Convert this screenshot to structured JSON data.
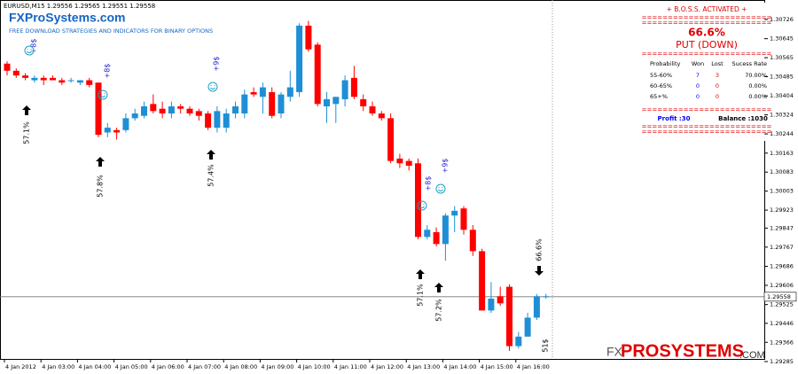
{
  "chart_data": {
    "type": "candlestick",
    "title": "EURUSD,M15  1.29556 1.29565 1.29551 1.29558",
    "categories": [
      "4 Jan 2012",
      null,
      null,
      null,
      "4 Jan 03:00",
      null,
      null,
      null,
      "4 Jan 04:00",
      null,
      null,
      null,
      "4 Jan 05:00",
      null,
      null,
      null,
      "4 Jan 06:00",
      null,
      null,
      null,
      "4 Jan 07:00",
      null,
      null,
      null,
      "4 Jan 08:00",
      null,
      null,
      null,
      "4 Jan 09:00",
      null,
      null,
      null,
      "4 Jan 10:00",
      null,
      null,
      null,
      "4 Jan 11:00",
      null,
      null,
      null,
      "4 Jan 12:00",
      null,
      null,
      null,
      "4 Jan 13:00",
      null,
      null,
      null,
      "4 Jan 14:00",
      null,
      null,
      null,
      "4 Jan 15:00",
      null,
      null,
      null,
      "4 Jan 16:00",
      null,
      null,
      null
    ],
    "open": [
      1.3054,
      1.3051,
      1.3049,
      1.3047,
      1.3048,
      1.3048,
      1.3047,
      1.3047,
      1.3046,
      1.3047,
      1.3046,
      1.3025,
      1.3026,
      1.3026,
      1.3031,
      1.3032,
      1.3037,
      1.3035,
      1.3033,
      1.3036,
      1.3035,
      1.3034,
      1.3033,
      1.3027,
      1.3027,
      1.3033,
      1.3033,
      1.3042,
      1.304,
      1.3042,
      1.3033,
      1.304,
      1.3042,
      1.307,
      1.3062,
      1.3036,
      1.3037,
      1.3039,
      1.3048,
      1.3039,
      1.3036,
      1.3033,
      1.3031,
      1.3014,
      1.3013,
      1.3012,
      1.2981,
      1.2983,
      1.2978,
      1.299,
      1.2993,
      1.2984,
      1.2975,
      1.295,
      1.2956,
      1.296,
      1.2935,
      1.2939,
      1.2947,
      1.2956
    ],
    "high": [
      1.3055,
      1.3052,
      1.305,
      1.3049,
      1.3049,
      1.3049,
      1.3048,
      1.3048,
      1.3047,
      1.3048,
      1.3046,
      1.3029,
      1.3027,
      1.3033,
      1.3035,
      1.3038,
      1.3041,
      1.3038,
      1.3038,
      1.3037,
      1.3036,
      1.3035,
      1.3034,
      1.3036,
      1.3035,
      1.3038,
      1.3043,
      1.3044,
      1.3046,
      1.3044,
      1.3042,
      1.3051,
      1.3071,
      1.3072,
      1.3063,
      1.3042,
      1.304,
      1.3049,
      1.3053,
      1.3041,
      1.3038,
      1.3034,
      1.3033,
      1.3016,
      1.3014,
      1.3014,
      1.2986,
      1.2985,
      1.2991,
      1.2994,
      1.2994,
      1.2986,
      1.2976,
      1.2962,
      1.296,
      1.2961,
      1.2941,
      1.2949,
      1.2957,
      1.2957
    ],
    "low": [
      1.3049,
      1.3048,
      1.3047,
      1.3046,
      1.3045,
      1.3047,
      1.3045,
      1.3046,
      1.3045,
      1.3044,
      1.3023,
      1.3023,
      1.3022,
      1.3025,
      1.303,
      1.3031,
      1.3033,
      1.3031,
      1.3031,
      1.3033,
      1.3032,
      1.303,
      1.3026,
      1.3025,
      1.3025,
      1.3031,
      1.3031,
      1.304,
      1.3033,
      1.3031,
      1.3031,
      1.3038,
      1.304,
      1.3059,
      1.3036,
      1.3029,
      1.3029,
      1.3036,
      1.3039,
      1.3034,
      1.3032,
      1.303,
      1.3012,
      1.301,
      1.3009,
      1.298,
      1.298,
      1.2977,
      1.2971,
      1.2983,
      1.2982,
      1.2973,
      1.295,
      1.2949,
      1.2952,
      1.2933,
      1.2934,
      1.2939,
      1.2946,
      1.2955
    ],
    "close": [
      1.3051,
      1.3049,
      1.3048,
      1.3048,
      1.3047,
      1.3047,
      1.3046,
      1.3047,
      1.3047,
      1.3045,
      1.3024,
      1.3027,
      1.3025,
      1.3031,
      1.3033,
      1.3036,
      1.3034,
      1.3033,
      1.3036,
      1.3035,
      1.3033,
      1.3032,
      1.3027,
      1.3034,
      1.3033,
      1.3036,
      1.3041,
      1.3041,
      1.3044,
      1.3032,
      1.3041,
      1.3044,
      1.307,
      1.306,
      1.3037,
      1.3039,
      1.304,
      1.3047,
      1.304,
      1.3036,
      1.3033,
      1.3031,
      1.3013,
      1.3012,
      1.3011,
      1.2981,
      1.2984,
      1.2978,
      1.299,
      1.2992,
      1.2984,
      1.2975,
      1.295,
      1.2955,
      1.2953,
      1.2935,
      1.2939,
      1.2947,
      1.2956,
      1.2956
    ],
    "up_color": "#1e8fd6",
    "down_color": "#ff0000",
    "ylim": [
      1.29296,
      1.30808
    ],
    "yticks": [
      1.30726,
      1.30645,
      1.30565,
      1.30485,
      1.30404,
      1.30324,
      1.30244,
      1.30163,
      1.30083,
      1.30003,
      1.29923,
      1.29847,
      1.29767,
      1.29686,
      1.29606,
      1.29525,
      1.29446,
      1.29366,
      1.29285
    ],
    "current_price": 1.29558,
    "signals": [
      {
        "label": "57.1%",
        "direction": "up"
      },
      {
        "label": "57.8%",
        "direction": "up"
      },
      {
        "label": "57.4%",
        "direction": "up"
      },
      {
        "label": "57.1%",
        "direction": "up"
      },
      {
        "label": "57.2%",
        "direction": "up"
      },
      {
        "label": "66.6%",
        "direction": "down"
      }
    ],
    "profits": [
      "+8$",
      "+8$",
      "+9$",
      "+8$",
      "+9$",
      "51$"
    ]
  },
  "branding": {
    "logo": "FXProSystems.com",
    "tagline": "FREE DOWNLOAD STRATEGIES AND INDICATORS FOR BINARY OPTIONS",
    "footer_fx": "FX",
    "footer_name": "PROSYSTEMS",
    "footer_com": ".COM"
  },
  "panel": {
    "header": "+ B.O.S.S. ACTIVATED +",
    "separator": "=========================",
    "percent": "66.6%",
    "signal": "PUT (DOWN)",
    "columns": [
      "Probability",
      "Won",
      "Lost",
      "Sucess Rate"
    ],
    "rows": [
      [
        "55-60%",
        "7",
        "3",
        "70.00%"
      ],
      [
        "60-65%",
        "0",
        "0",
        "0.00%"
      ],
      [
        "65+%",
        "0",
        "0",
        "0.00%"
      ]
    ],
    "profit": "Profit :30",
    "balance": "Balance :1030"
  }
}
